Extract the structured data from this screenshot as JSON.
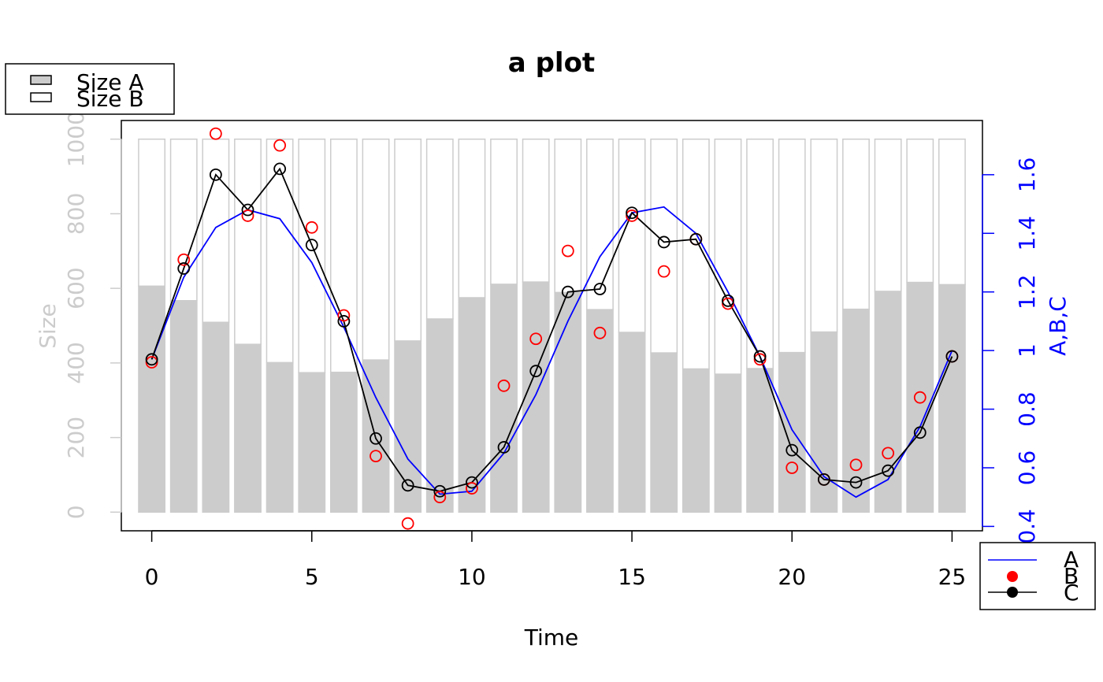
{
  "chart_data": {
    "type": "bar",
    "title": "a plot",
    "xlabel": "Time",
    "ylabel_left": "Size",
    "ylabel_right": "A,B,C",
    "xlim": [
      -0.95,
      25.95
    ],
    "ylim_left": [
      -50,
      1050
    ],
    "ylim_right": [
      0.385,
      1.785
    ],
    "x_ticks": [
      0,
      5,
      10,
      15,
      20,
      25
    ],
    "y_left_ticks": [
      0,
      200,
      400,
      600,
      800,
      1000
    ],
    "y_right_ticks": [
      0.4,
      0.6,
      0.8,
      1,
      1.2,
      1.4,
      1.6
    ],
    "colors": {
      "left_axis": "#cccccc",
      "right_axis": "#0000ff",
      "bar_fill": "#cccccc",
      "bar_border": "#cccccc",
      "A": "#0000ff",
      "B": "#ff0000",
      "C": "#000000"
    },
    "x": [
      0,
      1,
      2,
      3,
      4,
      5,
      6,
      7,
      8,
      9,
      10,
      11,
      12,
      13,
      14,
      15,
      16,
      17,
      18,
      19,
      20,
      21,
      22,
      23,
      24,
      25
    ],
    "bar_series": [
      {
        "name": "Size A",
        "fill": "#cccccc",
        "values": [
          606,
          567,
          509,
          450,
          401,
          374,
          375,
          408,
          459,
          518,
          575,
          611,
          617,
          589,
          543,
          482,
          427,
          384,
          370,
          385,
          428,
          483,
          544,
          592,
          616,
          610
        ]
      },
      {
        "name": "Size B",
        "fill": "#ffffff",
        "values": [
          394,
          433,
          491,
          550,
          599,
          626,
          625,
          592,
          541,
          482,
          425,
          389,
          383,
          411,
          457,
          518,
          573,
          616,
          630,
          615,
          572,
          517,
          456,
          408,
          384,
          390
        ]
      }
    ],
    "series": [
      {
        "name": "A",
        "style": "line",
        "values": [
          0.97,
          1.25,
          1.42,
          1.48,
          1.45,
          1.3,
          1.08,
          0.84,
          0.63,
          0.51,
          0.52,
          0.65,
          0.85,
          1.1,
          1.32,
          1.47,
          1.49,
          1.4,
          1.2,
          0.98,
          0.73,
          0.57,
          0.5,
          0.56,
          0.74,
          1.0
        ]
      },
      {
        "name": "B",
        "style": "points",
        "values": [
          0.96,
          1.31,
          1.74,
          1.46,
          1.7,
          1.42,
          1.12,
          0.64,
          0.41,
          0.5,
          0.53,
          0.88,
          1.04,
          1.34,
          1.06,
          1.46,
          1.27,
          1.38,
          1.16,
          0.97,
          0.6,
          0.56,
          0.61,
          0.65,
          0.84,
          0.98
        ]
      },
      {
        "name": "C",
        "style": "line+points",
        "values": [
          0.97,
          1.28,
          1.6,
          1.48,
          1.62,
          1.36,
          1.1,
          0.7,
          0.54,
          0.52,
          0.55,
          0.67,
          0.93,
          1.2,
          1.21,
          1.47,
          1.37,
          1.38,
          1.17,
          0.98,
          0.66,
          0.56,
          0.55,
          0.59,
          0.72,
          0.98
        ]
      }
    ],
    "legend_bars": {
      "placement": "top-left outside",
      "entries": [
        "Size A",
        "Size B"
      ]
    },
    "legend_lines": {
      "placement": "bottom-right outside",
      "entries": [
        "A",
        "B",
        "C"
      ]
    }
  }
}
